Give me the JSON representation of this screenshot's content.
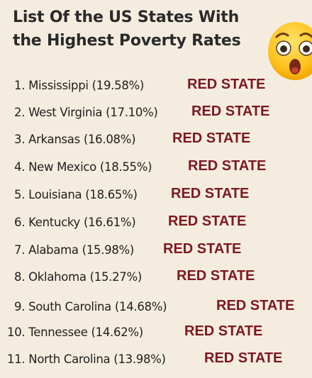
{
  "title": "List Of the US States With the Highest Poverty Rates",
  "emoji": {
    "icon": "astonished-face-emoji"
  },
  "items": [
    {
      "text": "1. Mississippi (19.58%)",
      "tag": "RED STATE"
    },
    {
      "text": "2. West Virginia (17.10%)",
      "tag": "RED STATE"
    },
    {
      "text": "3. Arkansas (16.08%)",
      "tag": "RED STATE"
    },
    {
      "text": "4. New Mexico (18.55%)",
      "tag": "RED STATE"
    },
    {
      "text": "5. Louisiana (18.65%)",
      "tag": "RED STATE"
    },
    {
      "text": "6. Kentucky (16.61%)",
      "tag": "RED STATE"
    },
    {
      "text": "7. Alabama (15.98%)",
      "tag": "RED STATE"
    },
    {
      "text": "8. Oklahoma (15.27%)",
      "tag": "RED STATE"
    },
    {
      "text": "9. South Carolina (14.68%)",
      "tag": "RED STATE"
    },
    {
      "text": "10. Tennessee (14.62%)",
      "tag": "RED STATE"
    },
    {
      "text": "11. North Carolina (13.98%)",
      "tag": "RED STATE"
    }
  ],
  "colors": {
    "background": "#f4eddf",
    "text": "#1e1e1e",
    "tag": "#7c1820"
  }
}
